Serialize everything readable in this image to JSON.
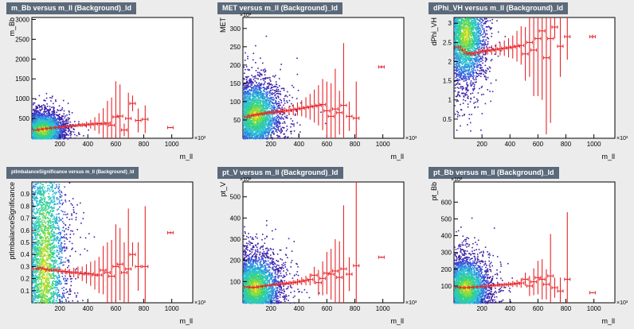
{
  "chart_data": [
    {
      "type": "scatter",
      "title": "m_Bb versus m_ll (Background)_ld",
      "xlabel": "m_ll",
      "ylabel": "m_Bb",
      "x_multiplier": "×10³",
      "y_multiplier": "",
      "xlim": [
        0,
        1150
      ],
      "ylim": [
        0,
        3050
      ],
      "x_ticks": [
        200,
        400,
        600,
        800,
        1000
      ],
      "y_ticks": [
        500,
        1000,
        1500,
        2000,
        2500,
        3000
      ],
      "profile_color": "#e8252a",
      "cloud_center": [
        75,
        220
      ],
      "cloud_extent": [
        60,
        180
      ],
      "x": [
        30,
        60,
        90,
        120,
        150,
        180,
        210,
        240,
        270,
        300,
        330,
        360,
        390,
        420,
        450,
        480,
        510,
        540,
        570,
        600,
        630,
        660,
        690,
        720,
        760,
        810,
        990
      ],
      "y": [
        205,
        225,
        238,
        252,
        262,
        272,
        285,
        300,
        308,
        318,
        328,
        336,
        345,
        355,
        362,
        372,
        360,
        385,
        330,
        540,
        560,
        210,
        500,
        880,
        450,
        480,
        270
      ],
      "yerr": [
        15,
        10,
        10,
        12,
        14,
        16,
        18,
        22,
        26,
        30,
        40,
        52,
        75,
        110,
        170,
        260,
        400,
        560,
        700,
        900,
        800,
        160,
        650,
        200,
        300,
        350,
        15
      ]
    },
    {
      "type": "scatter",
      "title": "MET versus m_ll (Background)_ld",
      "xlabel": "m_ll",
      "ylabel": "MET",
      "x_multiplier": "×10³",
      "y_multiplier": "×10³",
      "xlim": [
        0,
        1150
      ],
      "ylim": [
        0,
        330
      ],
      "x_ticks": [
        200,
        400,
        600,
        800,
        1000
      ],
      "y_ticks": [
        50,
        100,
        150,
        200,
        250,
        300
      ],
      "profile_color": "#e8252a",
      "cloud_center": [
        85,
        65
      ],
      "cloud_extent": [
        70,
        35
      ],
      "x": [
        30,
        60,
        90,
        120,
        150,
        180,
        210,
        240,
        270,
        300,
        330,
        360,
        390,
        420,
        450,
        480,
        510,
        540,
        570,
        600,
        630,
        660,
        690,
        720,
        760,
        810,
        990
      ],
      "y": [
        58,
        62,
        64,
        66,
        68,
        70,
        71,
        72,
        74,
        75,
        76,
        78,
        80,
        82,
        84,
        86,
        88,
        90,
        92,
        75,
        60,
        80,
        70,
        90,
        60,
        55,
        195
      ],
      "yerr": [
        6,
        4,
        4,
        4,
        5,
        5,
        6,
        7,
        8,
        10,
        12,
        15,
        18,
        22,
        28,
        35,
        45,
        55,
        70,
        80,
        90,
        110,
        60,
        170,
        40,
        100,
        4
      ]
    },
    {
      "type": "scatter",
      "title": "dPhi_VH versus m_ll (Background)_ld",
      "xlabel": "m_ll",
      "ylabel": "dPhi_VH",
      "x_multiplier": "×10³",
      "y_multiplier": "",
      "xlim": [
        0,
        1150
      ],
      "ylim": [
        0,
        3.15
      ],
      "x_ticks": [
        200,
        400,
        600,
        800,
        1000
      ],
      "y_ticks": [
        0.5,
        1,
        1.5,
        2,
        2.5,
        3
      ],
      "profile_color": "#e8252a",
      "cloud_center": [
        80,
        2.7
      ],
      "cloud_extent": [
        55,
        0.5
      ],
      "x": [
        30,
        60,
        90,
        120,
        150,
        180,
        210,
        240,
        270,
        300,
        330,
        360,
        390,
        420,
        450,
        480,
        510,
        540,
        570,
        600,
        630,
        660,
        690,
        720,
        760,
        810,
        990
      ],
      "y": [
        2.38,
        2.3,
        2.22,
        2.2,
        2.22,
        2.25,
        2.27,
        2.28,
        2.3,
        2.32,
        2.33,
        2.35,
        2.36,
        2.38,
        2.4,
        2.42,
        2.2,
        2.5,
        2.3,
        2.6,
        2.8,
        2.1,
        2.6,
        2.9,
        2.4,
        2.65,
        2.65
      ],
      "yerr": [
        0.05,
        0.05,
        0.06,
        0.06,
        0.07,
        0.08,
        0.09,
        0.1,
        0.12,
        0.14,
        0.17,
        0.2,
        0.25,
        0.3,
        0.4,
        0.5,
        0.7,
        0.9,
        1.2,
        1.5,
        1.8,
        2.0,
        2.2,
        0.3,
        0.8,
        0.6,
        0.05
      ]
    },
    {
      "type": "scatter",
      "title": "ptImbalanceSignificance versus m_ll (Background)_ld",
      "xlabel": "m_ll",
      "ylabel": "ptImbalanceSignificance",
      "x_multiplier": "×10³",
      "y_multiplier": "",
      "xlim": [
        0,
        1150
      ],
      "ylim": [
        0,
        1.0
      ],
      "x_ticks": [
        200,
        400,
        600,
        800,
        1000
      ],
      "y_ticks": [
        0.1,
        0.2,
        0.3,
        0.4,
        0.5,
        0.6,
        0.7,
        0.8,
        0.9
      ],
      "profile_color": "#e8252a",
      "cloud_center": [
        90,
        0.3
      ],
      "cloud_extent": [
        60,
        0.55
      ],
      "x": [
        30,
        60,
        90,
        120,
        150,
        180,
        210,
        240,
        270,
        300,
        330,
        360,
        390,
        420,
        450,
        480,
        510,
        540,
        570,
        600,
        630,
        660,
        690,
        720,
        760,
        810,
        990
      ],
      "y": [
        0.28,
        0.29,
        0.28,
        0.27,
        0.27,
        0.27,
        0.26,
        0.26,
        0.25,
        0.25,
        0.25,
        0.24,
        0.24,
        0.24,
        0.23,
        0.23,
        0.27,
        0.25,
        0.22,
        0.3,
        0.32,
        0.25,
        0.28,
        0.4,
        0.3,
        0.3,
        0.58
      ],
      "yerr": [
        0.01,
        0.01,
        0.01,
        0.01,
        0.01,
        0.015,
        0.02,
        0.025,
        0.03,
        0.04,
        0.05,
        0.06,
        0.08,
        0.1,
        0.12,
        0.15,
        0.2,
        0.25,
        0.3,
        0.35,
        0.3,
        0.25,
        0.5,
        0.1,
        0.2,
        0.5,
        0.01
      ]
    },
    {
      "type": "scatter",
      "title": "pt_V versus m_ll (Background)_ld",
      "xlabel": "m_ll",
      "ylabel": "pt_V",
      "x_multiplier": "×10³",
      "y_multiplier": "×10³",
      "xlim": [
        0,
        1150
      ],
      "ylim": [
        0,
        570
      ],
      "x_ticks": [
        200,
        400,
        600,
        800,
        1000
      ],
      "y_ticks": [
        100,
        200,
        300,
        400,
        500
      ],
      "profile_color": "#e8252a",
      "cloud_center": [
        85,
        75
      ],
      "cloud_extent": [
        70,
        60
      ],
      "x": [
        30,
        60,
        90,
        120,
        150,
        180,
        210,
        240,
        270,
        300,
        330,
        360,
        390,
        420,
        450,
        480,
        510,
        540,
        570,
        600,
        630,
        660,
        690,
        720,
        760,
        810,
        990
      ],
      "y": [
        75,
        72,
        73,
        76,
        79,
        82,
        85,
        87,
        89,
        91,
        93,
        95,
        98,
        102,
        105,
        110,
        130,
        95,
        115,
        140,
        135,
        150,
        120,
        160,
        135,
        175,
        215
      ],
      "yerr": [
        4,
        3,
        3,
        3,
        4,
        4,
        5,
        6,
        7,
        8,
        10,
        12,
        15,
        18,
        22,
        28,
        40,
        60,
        80,
        100,
        120,
        150,
        170,
        300,
        80,
        400,
        4
      ]
    },
    {
      "type": "scatter",
      "title": "pt_Bb versus m_ll (Background)_ld",
      "xlabel": "m_ll",
      "ylabel": "pt_Bb",
      "x_multiplier": "×10³",
      "y_multiplier": "×10³",
      "xlim": [
        0,
        1150
      ],
      "ylim": [
        0,
        720
      ],
      "x_ticks": [
        200,
        400,
        600,
        800,
        1000
      ],
      "y_ticks": [
        100,
        200,
        300,
        400,
        500,
        600
      ],
      "profile_color": "#e8252a",
      "cloud_center": [
        80,
        90
      ],
      "cloud_extent": [
        65,
        70
      ],
      "x": [
        30,
        60,
        90,
        120,
        150,
        180,
        210,
        240,
        270,
        300,
        330,
        360,
        390,
        420,
        450,
        480,
        510,
        540,
        570,
        600,
        630,
        660,
        690,
        720,
        760,
        810,
        990
      ],
      "y": [
        92,
        90,
        90,
        92,
        94,
        96,
        98,
        100,
        102,
        104,
        106,
        108,
        110,
        112,
        115,
        118,
        140,
        100,
        125,
        150,
        140,
        110,
        160,
        90,
        70,
        140,
        60
      ],
      "yerr": [
        4,
        3,
        3,
        3,
        4,
        4,
        5,
        6,
        7,
        8,
        10,
        12,
        15,
        18,
        22,
        28,
        40,
        60,
        80,
        100,
        120,
        90,
        250,
        60,
        80,
        400,
        4
      ]
    }
  ]
}
